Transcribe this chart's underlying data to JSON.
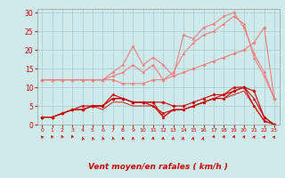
{
  "x": [
    0,
    1,
    2,
    3,
    4,
    5,
    6,
    7,
    8,
    9,
    10,
    11,
    12,
    13,
    14,
    15,
    16,
    17,
    18,
    19,
    20,
    21,
    22,
    23
  ],
  "series": [
    {
      "y": [
        12,
        12,
        12,
        12,
        12,
        12,
        12,
        12,
        11,
        11,
        11,
        12,
        12,
        13,
        14,
        15,
        16,
        17,
        18,
        19,
        20,
        22,
        26,
        7
      ],
      "color": "#f08080",
      "linewidth": 0.8,
      "marker": "D",
      "markersize": 1.8
    },
    {
      "y": [
        12,
        12,
        12,
        12,
        12,
        12,
        12,
        14,
        16,
        21,
        16,
        18,
        16,
        13,
        24,
        23,
        26,
        27,
        29,
        30,
        26,
        19,
        14,
        7
      ],
      "color": "#f08080",
      "linewidth": 0.8,
      "marker": "*",
      "markersize": 2.5
    },
    {
      "y": [
        12,
        12,
        12,
        12,
        12,
        12,
        12,
        13,
        14,
        16,
        14,
        16,
        12,
        14,
        19,
        22,
        24,
        25,
        27,
        29,
        27,
        18,
        13,
        7
      ],
      "color": "#f08080",
      "linewidth": 0.8,
      "marker": "^",
      "markersize": 2.0
    },
    {
      "y": [
        2,
        2,
        3,
        4,
        4,
        5,
        5,
        7,
        7,
        6,
        6,
        6,
        6,
        5,
        5,
        6,
        7,
        8,
        8,
        9,
        10,
        9,
        2,
        0
      ],
      "color": "#cc0000",
      "linewidth": 0.8,
      "marker": "D",
      "markersize": 1.8
    },
    {
      "y": [
        2,
        2,
        3,
        4,
        5,
        5,
        5,
        8,
        7,
        6,
        6,
        6,
        2,
        4,
        4,
        5,
        6,
        7,
        7,
        9,
        10,
        5,
        1,
        0
      ],
      "color": "#cc0000",
      "linewidth": 0.8,
      "marker": "*",
      "markersize": 2.5
    },
    {
      "y": [
        2,
        2,
        3,
        4,
        4,
        5,
        5,
        7,
        7,
        6,
        6,
        5,
        3,
        4,
        4,
        5,
        6,
        7,
        8,
        10,
        10,
        7,
        2,
        0
      ],
      "color": "#cc0000",
      "linewidth": 0.8,
      "marker": "^",
      "markersize": 2.0
    },
    {
      "y": [
        2,
        2,
        3,
        4,
        4,
        5,
        4,
        6,
        6,
        5,
        5,
        5,
        2,
        4,
        4,
        5,
        6,
        7,
        7,
        8,
        9,
        5,
        1,
        0
      ],
      "color": "#cc0000",
      "linewidth": 0.6,
      "marker": null,
      "markersize": 0
    }
  ],
  "arrow_angles_deg": [
    150,
    140,
    135,
    130,
    125,
    120,
    115,
    110,
    100,
    95,
    90,
    85,
    80,
    75,
    65,
    60,
    55,
    50,
    45,
    45,
    40,
    35,
    30,
    30
  ],
  "xlabel": "Vent moyen/en rafales ( km/h )",
  "xlim": [
    -0.5,
    23.5
  ],
  "ylim": [
    0,
    31
  ],
  "yticks": [
    0,
    5,
    10,
    15,
    20,
    25,
    30
  ],
  "xticks": [
    0,
    1,
    2,
    3,
    4,
    5,
    6,
    7,
    8,
    9,
    10,
    11,
    12,
    13,
    14,
    15,
    16,
    17,
    18,
    19,
    20,
    21,
    22,
    23
  ],
  "bg_color": "#ceeaea",
  "grid_color": "#aacccc",
  "tick_color": "#cc0000",
  "label_color": "#cc0000"
}
